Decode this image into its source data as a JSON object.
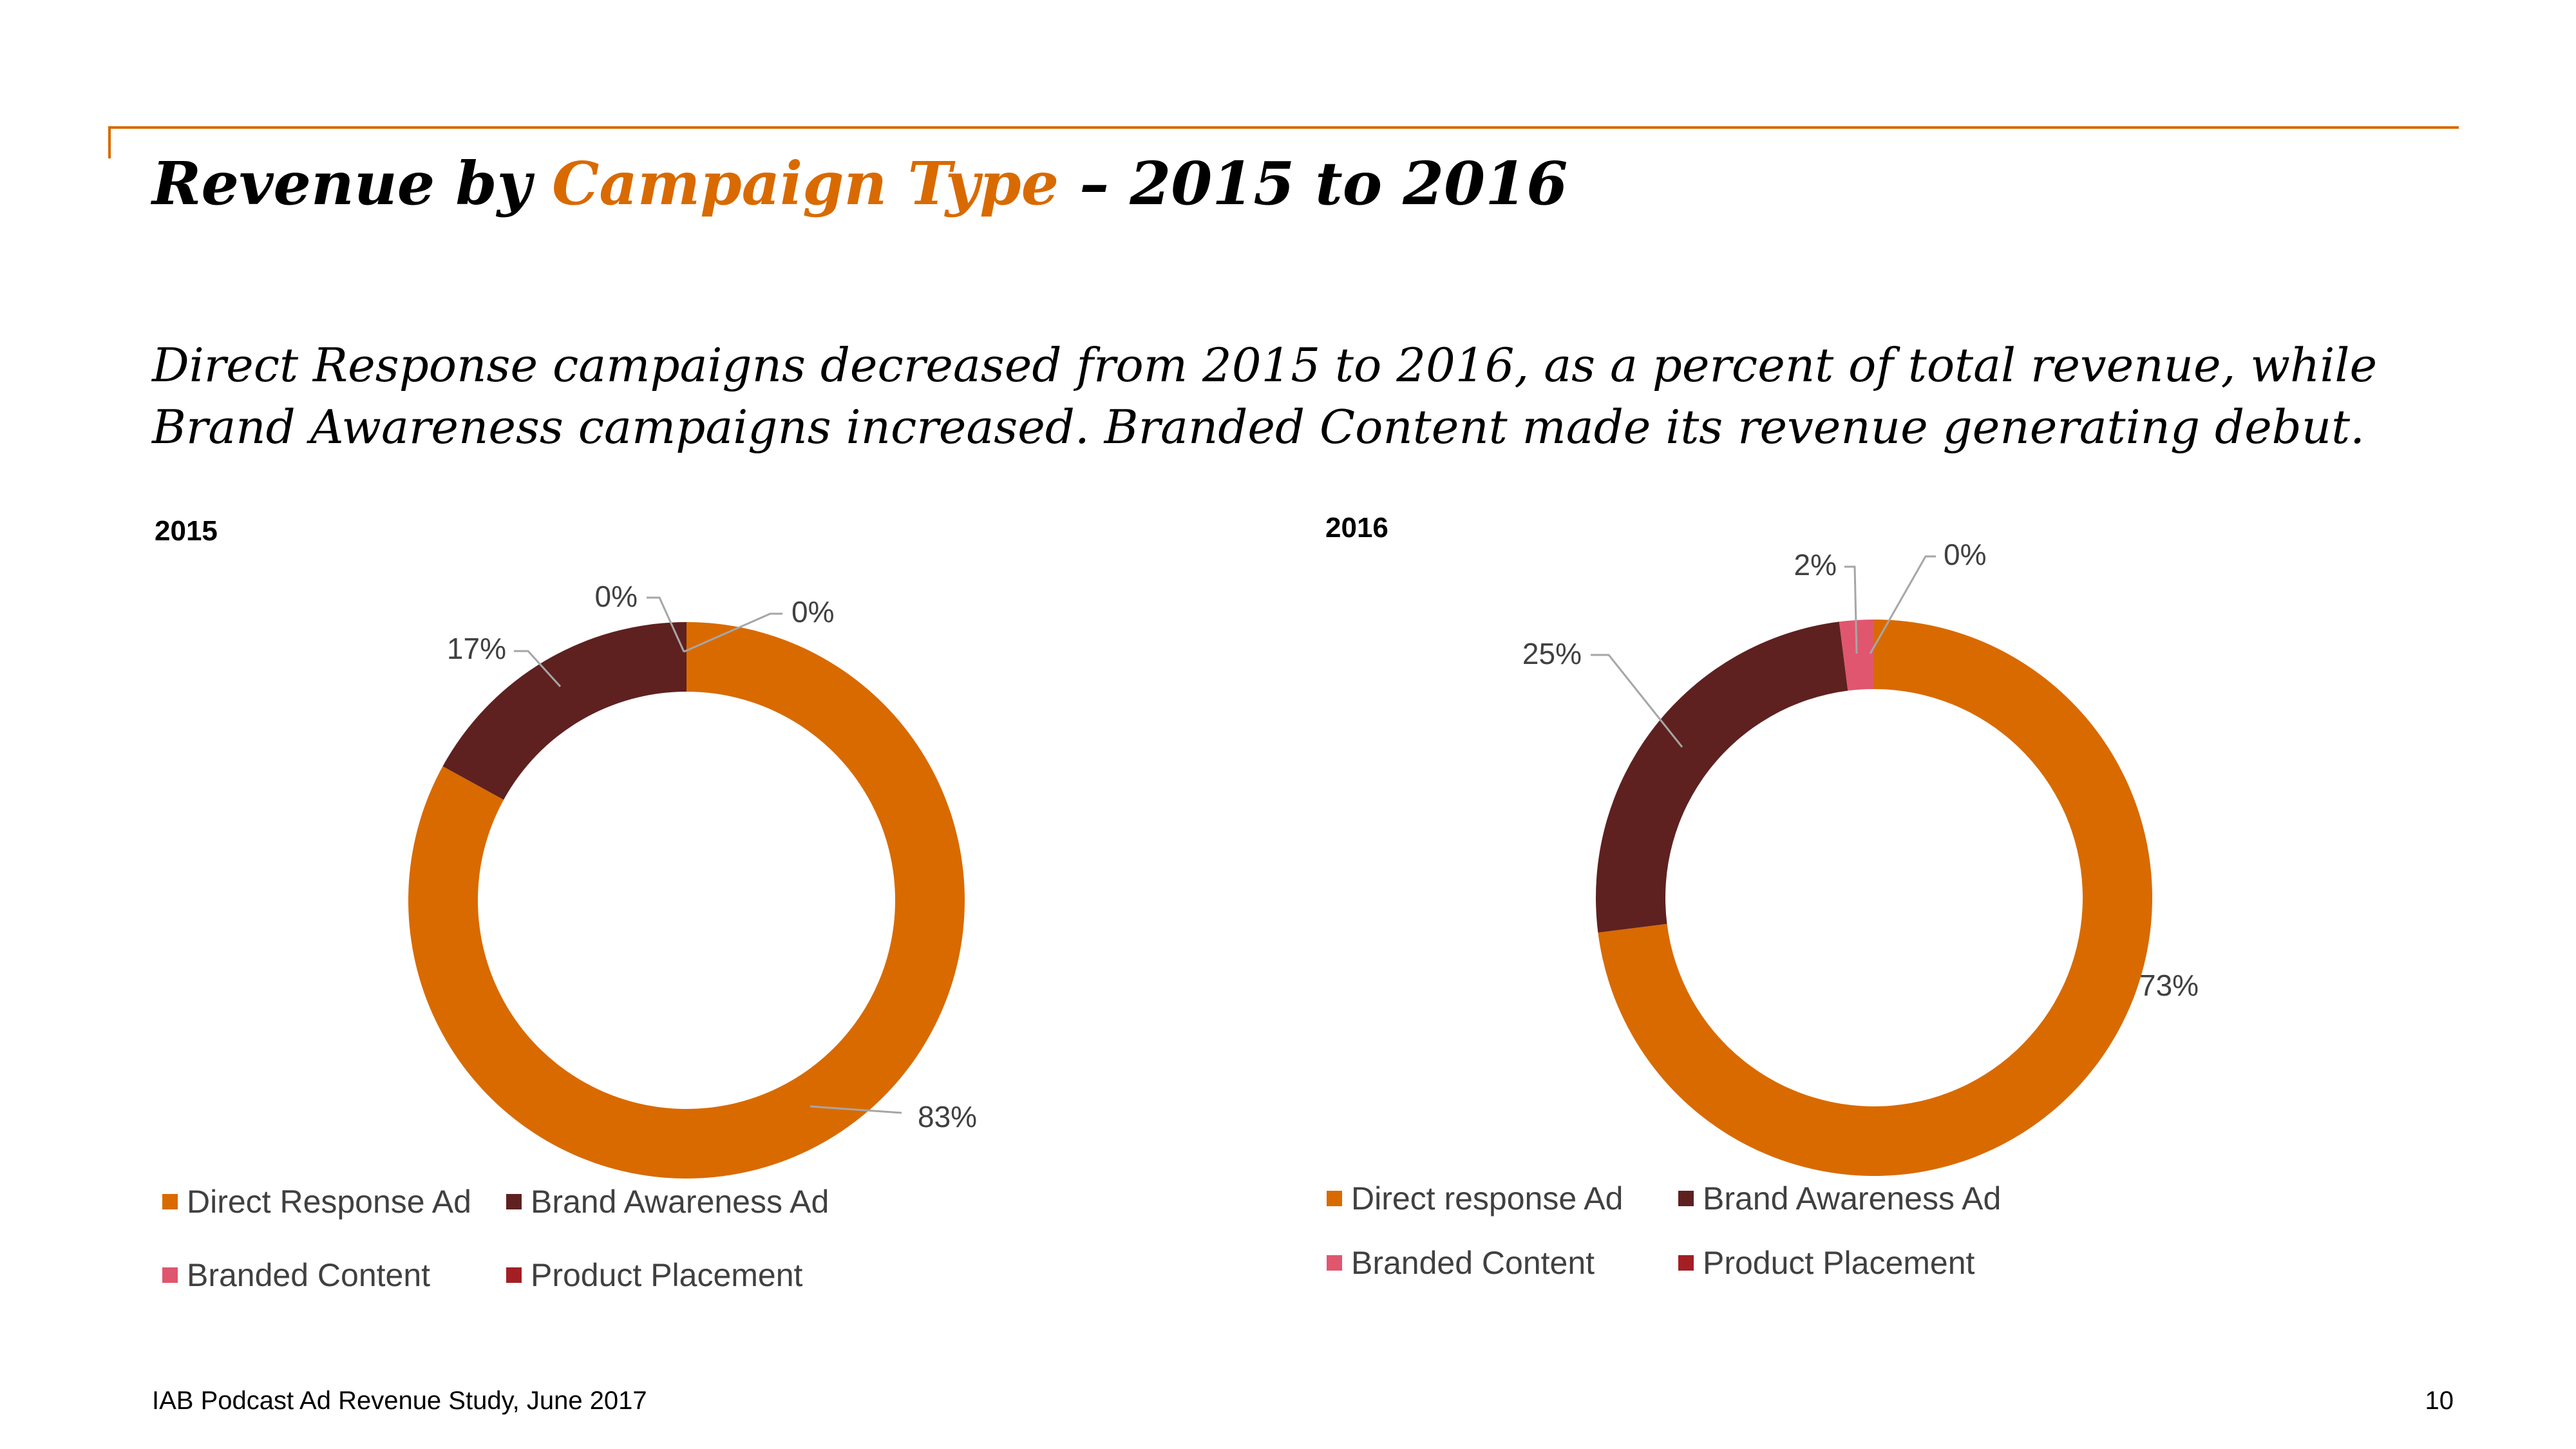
{
  "slide": {
    "title_pre": "Revenue by ",
    "title_accent": "Campaign Type",
    "title_post": " – 2015 to 2016",
    "subtitle": "Direct Response campaigns decreased from 2015 to 2016, as a percent of total revenue, while Brand Awareness campaigns increased. Branded Content made its revenue generating debut.",
    "footer_source": "IAB Podcast Ad Revenue Study, June 2017",
    "page_number": "10"
  },
  "colors": {
    "accent": "#D96A00",
    "direct": "#D96A00",
    "brand": "#5E2120",
    "branded": "#E0566E",
    "product": "#A31F24"
  },
  "chart_data": [
    {
      "type": "pie",
      "subtype": "donut",
      "title": "2015",
      "categories": [
        "Direct Response Ad",
        "Brand Awareness Ad",
        "Branded Content",
        "Product Placement"
      ],
      "values": [
        83,
        17,
        0,
        0
      ],
      "labels": [
        "83%",
        "17%",
        "0%",
        "0%"
      ],
      "legend_position": "bottom"
    },
    {
      "type": "pie",
      "subtype": "donut",
      "title": "2016",
      "categories": [
        "Direct response Ad",
        "Brand Awareness Ad",
        "Branded Content",
        "Product Placement"
      ],
      "values": [
        73,
        25,
        2,
        0
      ],
      "labels": [
        "73%",
        "25%",
        "2%",
        "0%"
      ],
      "legend_position": "bottom"
    }
  ]
}
